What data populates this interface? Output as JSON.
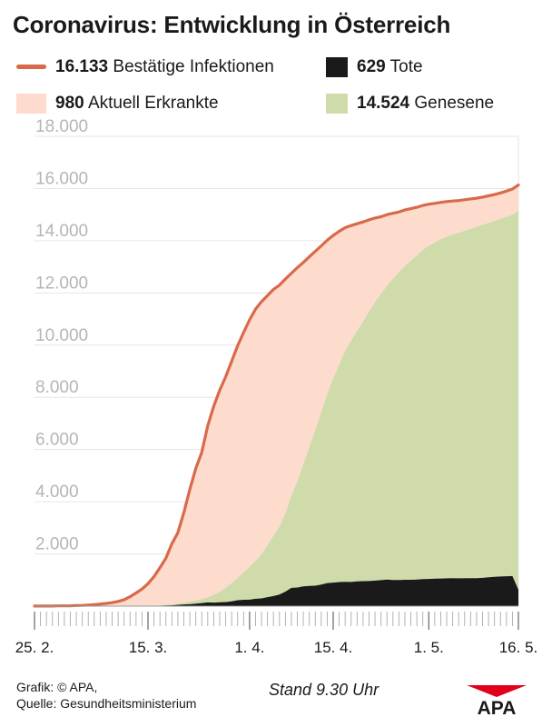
{
  "title": "Coronavirus: Entwicklung in Österreich",
  "legend": [
    {
      "value": "16.133",
      "label": "Bestätige Infektionen",
      "color": "#d9694a",
      "kind": "line"
    },
    {
      "value": "629",
      "label": "Tote",
      "color": "#1a1a1a",
      "kind": "box"
    },
    {
      "value": "980",
      "label": "Aktuell Erkrankte",
      "color": "#fddccd",
      "kind": "box"
    },
    {
      "value": "14.524",
      "label": "Genesene",
      "color": "#cfdbab",
      "kind": "box"
    }
  ],
  "footer": {
    "credit_line1": "Grafik: © APA,",
    "credit_line2": "Quelle: Gesundheitsministerium",
    "stand": "Stand 9.30 Uhr",
    "logo_text": "APA"
  },
  "chart_data": {
    "type": "area",
    "title": "Coronavirus: Entwicklung in Österreich",
    "x_tick_labels": [
      "25. 2.",
      "15. 3.",
      "1. 4.",
      "15. 4.",
      "1. 5.",
      "16. 5."
    ],
    "x_tick_days": [
      0,
      19,
      36,
      50,
      66,
      81
    ],
    "y_tick_labels": [
      "2.000",
      "4.000",
      "6.000",
      "8.000",
      "10.000",
      "12.000",
      "14.000",
      "16.000",
      "18.000"
    ],
    "y_ticks": [
      2000,
      4000,
      6000,
      8000,
      10000,
      12000,
      14000,
      16000,
      18000
    ],
    "ylim": [
      0,
      18000
    ],
    "grid": true,
    "legend_position": "top",
    "x": [
      "25. 2.",
      "26. 2.",
      "27. 2.",
      "28. 2.",
      "29. 2.",
      "1. 3.",
      "2. 3.",
      "3. 3.",
      "4. 3.",
      "5. 3.",
      "6. 3.",
      "7. 3.",
      "8. 3.",
      "9. 3.",
      "10. 3.",
      "11. 3.",
      "12. 3.",
      "13. 3.",
      "14. 3.",
      "15. 3.",
      "16. 3.",
      "17. 3.",
      "18. 3.",
      "19. 3.",
      "20. 3.",
      "21. 3.",
      "22. 3.",
      "23. 3.",
      "24. 3.",
      "25. 3.",
      "26. 3.",
      "27. 3.",
      "28. 3.",
      "29. 3.",
      "30. 3.",
      "31. 3.",
      "1. 4.",
      "2. 4.",
      "3. 4.",
      "4. 4.",
      "5. 4.",
      "6. 4.",
      "7. 4.",
      "8. 4.",
      "9. 4.",
      "10. 4.",
      "11. 4.",
      "12. 4.",
      "13. 4.",
      "14. 4.",
      "15. 4.",
      "16. 4.",
      "17. 4.",
      "18. 4.",
      "19. 4.",
      "20. 4.",
      "21. 4.",
      "22. 4.",
      "23. 4.",
      "24. 4.",
      "25. 4.",
      "26. 4.",
      "27. 4.",
      "28. 4.",
      "29. 4.",
      "30. 4.",
      "1. 5.",
      "2. 5.",
      "3. 5.",
      "4. 5.",
      "5. 5.",
      "6. 5.",
      "7. 5.",
      "8. 5.",
      "9. 5.",
      "10. 5.",
      "11. 5.",
      "12. 5.",
      "13. 5.",
      "14. 5.",
      "15. 5.",
      "16. 5."
    ],
    "series": [
      {
        "name": "Bestätige Infektionen",
        "kind": "line",
        "color": "#d9694a",
        "values": [
          2,
          2,
          3,
          5,
          9,
          10,
          14,
          24,
          29,
          41,
          55,
          79,
          104,
          131,
          182,
          246,
          361,
          504,
          655,
          860,
          1132,
          1471,
          1843,
          2388,
          2814,
          3582,
          4474,
          5283,
          5888,
          6909,
          7657,
          8271,
          8788,
          9377,
          9974,
          10482,
          10967,
          11383,
          11665,
          11895,
          12135,
          12297,
          12534,
          12757,
          12968,
          13167,
          13383,
          13597,
          13805,
          14016,
          14200,
          14360,
          14500,
          14580,
          14650,
          14720,
          14800,
          14870,
          14920,
          15000,
          15050,
          15100,
          15180,
          15230,
          15280,
          15350,
          15400,
          15430,
          15470,
          15500,
          15520,
          15540,
          15570,
          15600,
          15630,
          15670,
          15720,
          15770,
          15830,
          15900,
          15980,
          16133
        ]
      },
      {
        "name": "Aktuell Erkrankte",
        "kind": "area",
        "color": "#fddccd",
        "values": [
          2,
          2,
          3,
          5,
          9,
          10,
          14,
          24,
          29,
          41,
          55,
          79,
          104,
          130,
          180,
          243,
          357,
          496,
          644,
          846,
          1113,
          1440,
          1800,
          2325,
          2720,
          3455,
          4300,
          5070,
          5619,
          6567,
          7222,
          7724,
          8080,
          8494,
          8899,
          9190,
          9469,
          9651,
          9668,
          9549,
          9450,
          9255,
          8978,
          8611,
          8225,
          7762,
          7306,
          6843,
          6358,
          5882,
          5480,
          5098,
          4722,
          4403,
          4102,
          3812,
          3509,
          3220,
          2954,
          2735,
          2510,
          2301,
          2151,
          1989,
          1843,
          1703,
          1588,
          1498,
          1412,
          1346,
          1282,
          1235,
          1189,
          1147,
          1106,
          1066,
          1035,
          1010,
          994,
          984,
          976,
          980
        ]
      },
      {
        "name": "Genesene",
        "kind": "area",
        "color": "#cfdbab",
        "values": [
          0,
          0,
          0,
          0,
          0,
          0,
          0,
          0,
          0,
          0,
          0,
          0,
          0,
          0,
          0,
          0,
          0,
          2,
          5,
          6,
          9,
          13,
          18,
          33,
          45,
          60,
          100,
          120,
          150,
          200,
          300,
          400,
          550,
          700,
          850,
          1050,
          1250,
          1450,
          1700,
          2000,
          2300,
          2600,
          3000,
          3530,
          4080,
          4680,
          5320,
          5970,
          6620,
          7250,
          7820,
          8340,
          8850,
          9250,
          9600,
          9950,
          10330,
          10670,
          10970,
          11270,
          11540,
          11800,
          12020,
          12230,
          12420,
          12610,
          12770,
          12880,
          13000,
          13090,
          13170,
          13240,
          13310,
          13380,
          13450,
          13520,
          13580,
          13640,
          13700,
          13770,
          13850,
          14524
        ]
      },
      {
        "name": "Tote",
        "kind": "area",
        "color": "#1a1a1a",
        "values": [
          0,
          0,
          0,
          0,
          0,
          0,
          0,
          0,
          0,
          0,
          0,
          0,
          0,
          1,
          2,
          3,
          4,
          6,
          6,
          8,
          10,
          18,
          25,
          30,
          49,
          67,
          74,
          93,
          119,
          142,
          135,
          147,
          158,
          183,
          225,
          242,
          248,
          282,
          297,
          346,
          385,
          442,
          556,
          700,
          712,
          755,
          777,
          784,
          827,
          884,
          900,
          922,
          928,
          927,
          948,
          958,
          961,
          980,
          996,
          1015,
          1000,
          999,
          1009,
          1011,
          1017,
          1037,
          1042,
          1052,
          1058,
          1064,
          1068,
          1065,
          1071,
          1073,
          1074,
          1084,
          1105,
          1120,
          1136,
          1146,
          1154,
          629
        ]
      }
    ]
  }
}
